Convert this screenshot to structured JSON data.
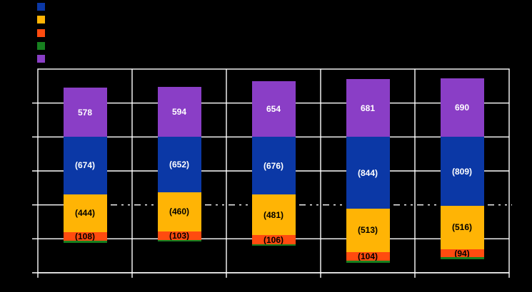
{
  "window": {
    "background": "#000000"
  },
  "chart_data": {
    "type": "bar",
    "subtype": "stacked-column-with-negative-values",
    "title": "",
    "categories": [
      "",
      "",
      "",
      "",
      ""
    ],
    "series": [
      {
        "name": "blue",
        "color": "#0B38A6",
        "values": [
          -674,
          -652,
          -676,
          -844,
          -809
        ],
        "data_labels": [
          "(674)",
          "(652)",
          "(676)",
          "(844)",
          "(809)"
        ],
        "label_color": "#FFFFFF"
      },
      {
        "name": "gold",
        "color": "#FFB405",
        "values": [
          -444,
          -460,
          -481,
          -513,
          -516
        ],
        "data_labels": [
          "(444)",
          "(460)",
          "(481)",
          "(513)",
          "(516)"
        ],
        "label_color": "#000000"
      },
      {
        "name": "orange",
        "color": "#FF4B0F",
        "values": [
          -108,
          -103,
          -106,
          -104,
          -94
        ],
        "data_labels": [
          "(108)",
          "(103)",
          "(106)",
          "(104)",
          "(94)"
        ],
        "label_color": "#000000"
      },
      {
        "name": "green",
        "color": "#17801F",
        "values": [
          -20,
          -20,
          -20,
          -20,
          -20
        ],
        "data_labels": [
          "",
          "",
          "",
          "",
          ""
        ],
        "label_color": "#000000",
        "estimated": true
      },
      {
        "name": "purple",
        "color": "#8A3EC6",
        "values": [
          578,
          594,
          654,
          681,
          690
        ],
        "data_labels": [
          "578",
          "594",
          "654",
          "681",
          "690"
        ],
        "label_color": "#FFFFFF"
      }
    ],
    "legend": {
      "position": "top-left",
      "order": [
        "blue",
        "gold",
        "orange",
        "green",
        "purple"
      ],
      "labels_visible": false
    },
    "axes": {
      "y": {
        "min": -1600,
        "max": 800,
        "major_unit": 400,
        "tick_labels_visible": false
      },
      "x": {
        "tick_labels_visible": false
      }
    },
    "gridlines": {
      "color": "#FFFFFF",
      "horizontal_solid_values": [
        400,
        0,
        -400,
        -1200
      ],
      "dashed_value": -800,
      "vertical_between_categories": true
    },
    "plot_border_color": "#FFFFFF"
  }
}
